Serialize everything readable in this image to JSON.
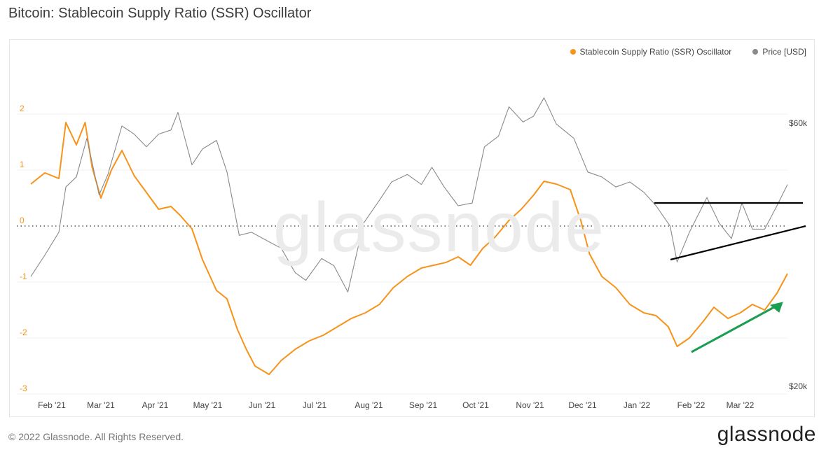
{
  "title": "Bitcoin: Stablecoin Supply Ratio (SSR) Oscillator",
  "footer": "© 2022 Glassnode. All Rights Reserved.",
  "brand": "glassnode",
  "watermark": "glassnode",
  "chart_data": {
    "type": "line",
    "legend_position": "top-right",
    "x_ticks": [
      "Feb '21",
      "Mar '21",
      "Apr '21",
      "May '21",
      "Jun '21",
      "Jul '21",
      "Aug '21",
      "Sep '21",
      "Oct '21",
      "Nov '21",
      "Dec '21",
      "Jan '22",
      "Feb '22",
      "Mar '22"
    ],
    "y_left_ticks": [
      "2",
      "1",
      "0",
      "-1",
      "-2",
      "-3"
    ],
    "y_right_ticks": [
      "$60k",
      "$20k"
    ],
    "ylim_left": [
      -3,
      2.3
    ],
    "ylim_right_scale": "log",
    "grid": "horizontal",
    "zero_line": "dotted",
    "series": [
      {
        "name": "Stablecoin Supply Ratio (SSR) Oscillator",
        "color": "#f7931a",
        "axis": "left",
        "x": [
          "2021-01-20",
          "2021-01-28",
          "2021-02-05",
          "2021-02-09",
          "2021-02-15",
          "2021-02-20",
          "2021-02-24",
          "2021-03-01",
          "2021-03-07",
          "2021-03-13",
          "2021-03-20",
          "2021-03-27",
          "2021-04-03",
          "2021-04-10",
          "2021-04-15",
          "2021-04-22",
          "2021-04-28",
          "2021-05-06",
          "2021-05-12",
          "2021-05-18",
          "2021-05-23",
          "2021-05-28",
          "2021-06-05",
          "2021-06-12",
          "2021-06-20",
          "2021-06-28",
          "2021-07-06",
          "2021-07-14",
          "2021-07-22",
          "2021-07-30",
          "2021-08-07",
          "2021-08-15",
          "2021-08-23",
          "2021-08-31",
          "2021-09-07",
          "2021-09-14",
          "2021-09-21",
          "2021-09-28",
          "2021-10-05",
          "2021-10-12",
          "2021-10-20",
          "2021-10-27",
          "2021-11-03",
          "2021-11-09",
          "2021-11-16",
          "2021-11-24",
          "2021-11-30",
          "2021-12-05",
          "2021-12-12",
          "2021-12-20",
          "2021-12-28",
          "2022-01-05",
          "2022-01-12",
          "2022-01-19",
          "2022-01-24",
          "2022-01-31",
          "2022-02-08",
          "2022-02-14",
          "2022-02-22",
          "2022-03-01",
          "2022-03-08",
          "2022-03-15",
          "2022-03-22",
          "2022-03-28"
        ],
        "y": [
          0.75,
          0.95,
          0.85,
          1.85,
          1.45,
          1.85,
          1.05,
          0.5,
          1.0,
          1.35,
          0.9,
          0.6,
          0.3,
          0.35,
          0.2,
          -0.05,
          -0.6,
          -1.15,
          -1.3,
          -1.85,
          -2.2,
          -2.5,
          -2.65,
          -2.4,
          -2.2,
          -2.05,
          -1.95,
          -1.8,
          -1.65,
          -1.55,
          -1.4,
          -1.1,
          -0.9,
          -0.75,
          -0.7,
          -0.65,
          -0.55,
          -0.7,
          -0.4,
          -0.2,
          0.1,
          0.3,
          0.55,
          0.8,
          0.75,
          0.65,
          0.1,
          -0.5,
          -0.9,
          -1.1,
          -1.4,
          -1.55,
          -1.6,
          -1.8,
          -2.15,
          -2.0,
          -1.7,
          -1.45,
          -1.65,
          -1.55,
          -1.4,
          -1.5,
          -1.2,
          -0.85
        ]
      },
      {
        "name": "Price [USD]",
        "color": "#8a8a8a",
        "axis": "right",
        "x": [
          "2021-01-20",
          "2021-01-28",
          "2021-02-05",
          "2021-02-09",
          "2021-02-15",
          "2021-02-21",
          "2021-02-28",
          "2021-03-05",
          "2021-03-13",
          "2021-03-20",
          "2021-03-27",
          "2021-04-03",
          "2021-04-10",
          "2021-04-14",
          "2021-04-22",
          "2021-04-28",
          "2021-05-06",
          "2021-05-12",
          "2021-05-19",
          "2021-05-26",
          "2021-06-05",
          "2021-06-12",
          "2021-06-20",
          "2021-06-26",
          "2021-07-05",
          "2021-07-12",
          "2021-07-20",
          "2021-07-29",
          "2021-08-07",
          "2021-08-14",
          "2021-08-23",
          "2021-08-31",
          "2021-09-06",
          "2021-09-13",
          "2021-09-21",
          "2021-09-29",
          "2021-10-06",
          "2021-10-14",
          "2021-10-20",
          "2021-10-28",
          "2021-11-03",
          "2021-11-09",
          "2021-11-16",
          "2021-11-26",
          "2021-12-04",
          "2021-12-12",
          "2021-12-20",
          "2021-12-28",
          "2022-01-05",
          "2022-01-12",
          "2022-01-20",
          "2022-01-24",
          "2022-01-31",
          "2022-02-10",
          "2022-02-17",
          "2022-02-24",
          "2022-03-02",
          "2022-03-08",
          "2022-03-15",
          "2022-03-22",
          "2022-03-28"
        ],
        "y": [
          32000,
          35000,
          38500,
          46500,
          48500,
          57000,
          45000,
          49000,
          60000,
          58000,
          55000,
          58000,
          59000,
          63500,
          51000,
          54500,
          56500,
          49500,
          38000,
          38500,
          37000,
          36000,
          32500,
          31500,
          34500,
          33500,
          30000,
          40000,
          44000,
          47500,
          49000,
          47000,
          50500,
          46500,
          43000,
          43500,
          55000,
          57500,
          65000,
          61000,
          62500,
          67500,
          60500,
          57000,
          49500,
          48500,
          46500,
          47500,
          45500,
          43000,
          39500,
          34000,
          38500,
          44500,
          40000,
          37500,
          43500,
          39000,
          39000,
          43000,
          47000
        ]
      }
    ]
  }
}
